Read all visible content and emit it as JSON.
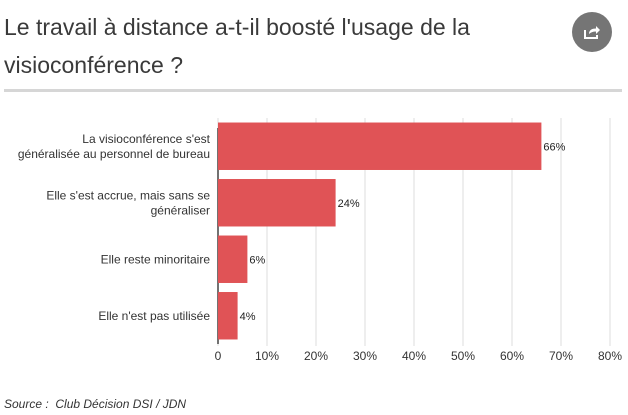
{
  "header": {
    "title": "Le travail à distance a-t-il boosté l'usage de la visioconférence ?",
    "share_icon": "share-icon"
  },
  "chart_data": {
    "type": "bar",
    "orientation": "horizontal",
    "categories": [
      [
        "La visioconférence s'est",
        "généralisée au personnel de bureau"
      ],
      [
        "Elle s'est accrue, mais sans se",
        "généraliser"
      ],
      [
        "Elle reste minoritaire"
      ],
      [
        "Elle n'est pas utilisée"
      ]
    ],
    "values": [
      66,
      24,
      6,
      4
    ],
    "value_labels": [
      "66%",
      "24%",
      "6%",
      "4%"
    ],
    "x_ticks": [
      0,
      10,
      20,
      30,
      40,
      50,
      60,
      70,
      80
    ],
    "x_tick_labels": [
      "0",
      "10%",
      "20%",
      "30%",
      "40%",
      "50%",
      "60%",
      "70%",
      "80%"
    ],
    "xlim": [
      0,
      80
    ],
    "grid": true,
    "bar_color": "#e05356"
  },
  "footer": {
    "source_prefix": "Source :  ",
    "source_name": "Club Décision DSI / JDN"
  }
}
